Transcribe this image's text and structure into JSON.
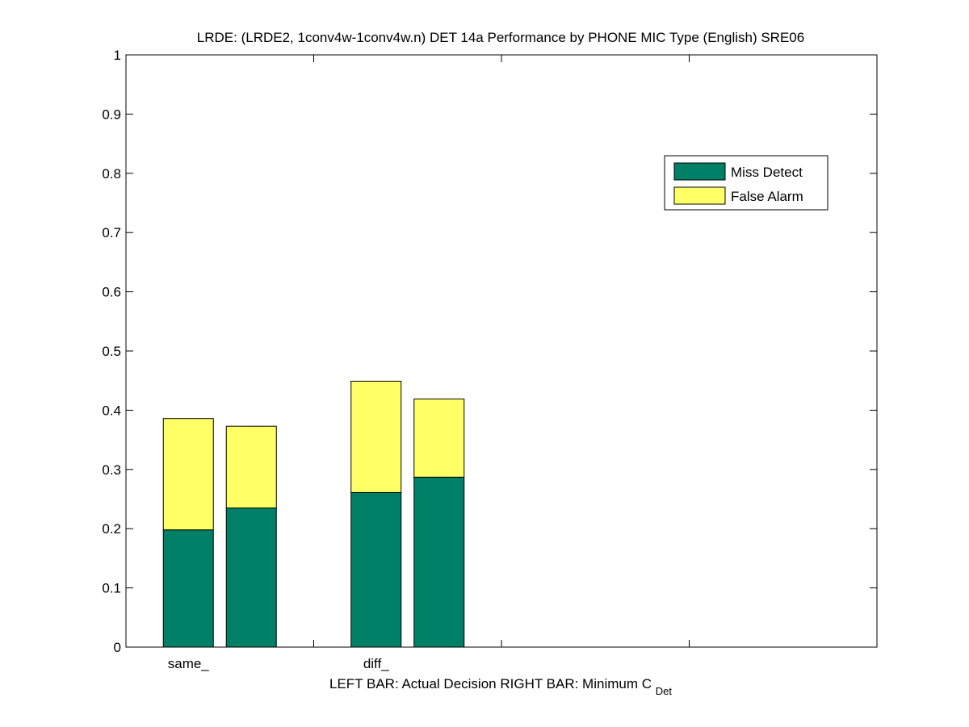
{
  "chart_data": {
    "type": "bar",
    "stacked": true,
    "title": "LRDE: (LRDE2, 1conv4w-1conv4w.n) DET 14a Performance by PHONE MIC Type (English) SRE06",
    "xlabel": {
      "left_bar_text": "LEFT BAR: Actual Decision",
      "right_bar_text": "RIGHT BAR: Minimum C",
      "right_bar_subscript": "Det"
    },
    "ylabel": "",
    "ylim": [
      0,
      1
    ],
    "yticks": [
      "0",
      "0.1",
      "0.2",
      "0.3",
      "0.4",
      "0.5",
      "0.6",
      "0.7",
      "0.8",
      "0.9",
      "1"
    ],
    "categories": [
      "same_",
      "diff_"
    ],
    "x_axis_extent_groups": 4,
    "bars_per_category": [
      "Actual Decision",
      "Minimum C_Det"
    ],
    "series": [
      {
        "name": "Miss Detect",
        "color": "#008066",
        "values": [
          [
            0.198,
            0.235
          ],
          [
            0.261,
            0.287
          ]
        ]
      },
      {
        "name": "False Alarm",
        "color": "#ffff66",
        "values": [
          [
            0.188,
            0.138
          ],
          [
            0.188,
            0.132
          ]
        ]
      }
    ],
    "legend": {
      "placement": "top-right"
    },
    "grid": false
  }
}
